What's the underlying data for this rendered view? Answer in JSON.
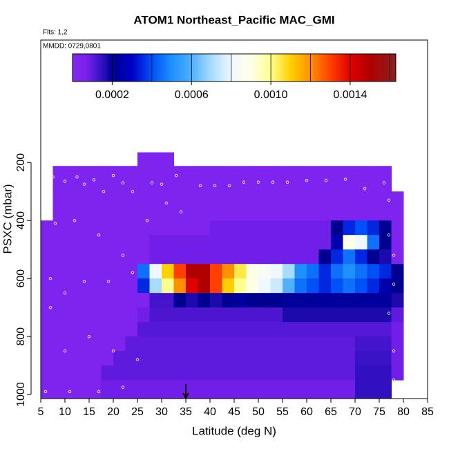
{
  "chart_data": {
    "type": "heatmap",
    "title": "ATOM1 Northeast_Pacific MAC_GMI",
    "subtitle": "Flts: 1,2",
    "annotation": "MMDD: 0729,0801",
    "xlabel": "Latitude (deg N)",
    "ylabel": "PSXC (mbar)",
    "xlim": [
      5,
      85
    ],
    "ylim": [
      1014,
      -222
    ],
    "xticks": [
      5,
      10,
      15,
      20,
      25,
      30,
      35,
      40,
      45,
      50,
      55,
      60,
      65,
      70,
      75,
      80,
      85
    ],
    "yticks": [
      200,
      400,
      600,
      800,
      1000
    ],
    "clim": [
      0,
      0.00163
    ],
    "cticks": [
      0.0002,
      0.0006,
      {
        "value": 0.001,
        "label": "0.0010"
      },
      0.0014
    ],
    "cbar_lines": [
      0.0002,
      0.0004,
      0.0006,
      0.0008,
      0.001,
      0.0012,
      0.0014,
      0.0016
    ],
    "colormap": [
      [
        0,
        "#8127ee"
      ],
      [
        7e-05,
        "#7a20ee"
      ],
      [
        0.00015,
        "#3010c0"
      ],
      [
        0.0002,
        "#000090"
      ],
      [
        0.0003,
        "#0000c8"
      ],
      [
        0.0004,
        "#0050f8"
      ],
      [
        0.0005,
        "#1e90ff"
      ],
      [
        0.0006,
        "#50b0ff"
      ],
      [
        0.0007,
        "#a8dcff"
      ],
      [
        0.0008,
        "#f0f8ff"
      ],
      [
        0.0009,
        "#ffffe8"
      ],
      [
        0.001,
        "#ffff90"
      ],
      [
        0.0011,
        "#ffd000"
      ],
      [
        0.0012,
        "#ff9000"
      ],
      [
        0.0013,
        "#ff4000"
      ],
      [
        0.0014,
        "#e00000"
      ],
      [
        0.0015,
        "#b00000"
      ],
      [
        0.00163,
        "#8b2020"
      ]
    ],
    "x_edges": [
      5,
      7.5,
      10,
      12.5,
      15,
      17.5,
      20,
      22.5,
      25,
      27.5,
      30,
      32.5,
      35,
      37.5,
      40,
      42.5,
      45,
      47.5,
      50,
      52.5,
      55,
      57.5,
      60,
      62.5,
      65,
      67.5,
      70,
      72.5,
      75,
      77.5,
      80
    ],
    "y_edges": [
      165,
      212,
      250,
      300,
      350,
      400,
      450,
      500,
      550,
      600,
      650,
      700,
      750,
      800,
      850,
      900,
      950,
      1000,
      1014
    ],
    "values": [
      [
        null,
        null,
        null,
        null,
        null,
        null,
        null,
        null,
        3e-05,
        3e-05,
        3e-05,
        null,
        null,
        null,
        null,
        null,
        null,
        null,
        null,
        null,
        null,
        null,
        null,
        null,
        null,
        null,
        null,
        null,
        null,
        null
      ],
      [
        null,
        3e-05,
        3e-05,
        3e-05,
        3e-05,
        3e-05,
        3e-05,
        3e-05,
        3e-05,
        3e-05,
        3e-05,
        3e-05,
        3e-05,
        3e-05,
        3e-05,
        3e-05,
        3e-05,
        3e-05,
        3e-05,
        3e-05,
        3e-05,
        3e-05,
        3e-05,
        3e-05,
        3e-05,
        3e-05,
        3e-05,
        3e-05,
        3e-05,
        null
      ],
      [
        null,
        3e-05,
        3e-05,
        3e-05,
        3e-05,
        3e-05,
        3e-05,
        3e-05,
        3e-05,
        3e-05,
        3e-05,
        3e-05,
        3e-05,
        3e-05,
        3e-05,
        3e-05,
        3e-05,
        3e-05,
        3e-05,
        3e-05,
        3e-05,
        3e-05,
        3e-05,
        3e-05,
        3e-05,
        3e-05,
        3e-05,
        3e-05,
        3e-05,
        null
      ],
      [
        null,
        3e-05,
        3e-05,
        3e-05,
        3e-05,
        3e-05,
        3e-05,
        3e-05,
        3e-05,
        3e-05,
        3e-05,
        3e-05,
        3e-05,
        3e-05,
        3e-05,
        3e-05,
        3e-05,
        3e-05,
        3e-05,
        3e-05,
        3e-05,
        3e-05,
        3e-05,
        3e-05,
        3e-05,
        3e-05,
        3e-05,
        3e-05,
        3e-05,
        3e-05
      ],
      [
        null,
        3e-05,
        3e-05,
        3e-05,
        3e-05,
        3e-05,
        3e-05,
        3e-05,
        3e-05,
        3e-05,
        3e-05,
        3e-05,
        3e-05,
        3e-05,
        3e-05,
        3e-05,
        3e-05,
        3e-05,
        3e-05,
        3e-05,
        3e-05,
        3e-05,
        3e-05,
        3e-05,
        3e-05,
        3e-05,
        3e-05,
        3e-05,
        3e-05,
        3e-05
      ],
      [
        3e-05,
        3e-05,
        3e-05,
        3e-05,
        3e-05,
        3e-05,
        3e-05,
        3e-05,
        3e-05,
        3e-05,
        3e-05,
        3e-05,
        3e-05,
        3e-05,
        8e-05,
        8e-05,
        8e-05,
        8e-05,
        8e-05,
        8e-05,
        8e-05,
        8e-05,
        8e-05,
        8e-05,
        0.0002,
        0.00035,
        0.0004,
        0.00035,
        0.0002,
        3e-05
      ],
      [
        3e-05,
        3e-05,
        3e-05,
        3e-05,
        3e-05,
        3e-05,
        3e-05,
        3e-05,
        3e-05,
        8e-05,
        8e-05,
        8e-05,
        8e-05,
        8e-05,
        8e-05,
        8e-05,
        8e-05,
        8e-05,
        8e-05,
        8e-05,
        8e-05,
        8e-05,
        8e-05,
        8e-05,
        0.00025,
        0.0009,
        0.0008,
        0.00045,
        0.0002,
        3e-05
      ],
      [
        3e-05,
        3e-05,
        3e-05,
        3e-05,
        3e-05,
        3e-05,
        3e-05,
        3e-05,
        3e-05,
        8e-05,
        8e-05,
        8e-05,
        8e-05,
        8e-05,
        8e-05,
        8e-05,
        8e-05,
        8e-05,
        8e-05,
        8e-05,
        8e-05,
        8e-05,
        8e-05,
        0.0002,
        0.00035,
        0.00045,
        0.00035,
        0.0002,
        0.00017,
        3e-05
      ],
      [
        3e-05,
        3e-05,
        3e-05,
        3e-05,
        3e-05,
        3e-05,
        3e-05,
        3e-05,
        0.00045,
        0.0008,
        0.0011,
        0.0013,
        0.0015,
        0.0015,
        0.0013,
        0.0012,
        0.00105,
        0.0009,
        0.00085,
        0.0008,
        0.0007,
        0.0005,
        0.00045,
        0.00035,
        0.00045,
        0.0005,
        0.00045,
        0.0004,
        0.00035,
        0.0002
      ],
      [
        3e-05,
        3e-05,
        3e-05,
        3e-05,
        3e-05,
        3e-05,
        3e-05,
        3e-05,
        0.00035,
        0.0007,
        0.001,
        0.0012,
        0.0014,
        0.0015,
        0.0013,
        0.0011,
        0.001,
        0.0009,
        0.0008,
        0.00075,
        0.0006,
        0.00045,
        0.0004,
        0.00035,
        0.0004,
        0.00045,
        0.0004,
        0.00035,
        0.00025,
        0.0002
      ],
      [
        3e-05,
        3e-05,
        3e-05,
        3e-05,
        3e-05,
        3e-05,
        3e-05,
        3e-05,
        3e-05,
        0.00013,
        0.00013,
        0.0002,
        0.00017,
        0.0002,
        0.00017,
        0.0002,
        0.00022,
        0.0002,
        0.0002,
        0.0002,
        0.00022,
        0.00022,
        0.00022,
        0.00022,
        0.00022,
        0.00022,
        0.00022,
        0.00022,
        0.00022,
        0.00017
      ],
      [
        3e-05,
        3e-05,
        3e-05,
        3e-05,
        3e-05,
        3e-05,
        3e-05,
        3e-05,
        8e-05,
        0.00012,
        0.00012,
        0.00012,
        0.00012,
        0.00012,
        0.00012,
        0.00012,
        0.00012,
        0.00012,
        0.00012,
        0.00012,
        0.00017,
        0.00017,
        0.00017,
        0.00017,
        0.00017,
        0.00017,
        0.00017,
        0.00017,
        0.00017,
        0.0001
      ],
      [
        3e-05,
        3e-05,
        3e-05,
        3e-05,
        3e-05,
        3e-05,
        3e-05,
        3e-05,
        0.00011,
        0.00011,
        0.00011,
        0.00011,
        0.00011,
        0.00011,
        0.00011,
        0.00011,
        0.00011,
        0.00011,
        0.00011,
        0.00011,
        0.00011,
        0.00011,
        0.00011,
        0.00011,
        0.00011,
        0.00011,
        0.00011,
        0.00011,
        0.00011,
        8e-05
      ],
      [
        3e-05,
        3e-05,
        3e-05,
        3e-05,
        3e-05,
        3e-05,
        3e-05,
        0.0001,
        0.0001,
        0.0001,
        0.0001,
        0.0001,
        0.0001,
        0.0001,
        0.0001,
        0.0001,
        0.0001,
        0.0001,
        0.0001,
        0.0001,
        0.0001,
        0.0001,
        0.0001,
        0.0001,
        0.0001,
        0.0001,
        0.00013,
        0.00013,
        0.00013,
        8e-05
      ],
      [
        3e-05,
        3e-05,
        3e-05,
        3e-05,
        3e-05,
        3e-05,
        0.0001,
        0.0001,
        0.0001,
        0.0001,
        0.0001,
        0.0001,
        0.0001,
        0.0001,
        0.0001,
        0.0001,
        0.0001,
        0.0001,
        0.0001,
        0.0001,
        0.0001,
        0.0001,
        0.0001,
        0.0001,
        0.0001,
        0.0001,
        0.00014,
        0.00014,
        0.00014,
        8e-05
      ],
      [
        3e-05,
        3e-05,
        3e-05,
        3e-05,
        3e-05,
        0.0001,
        0.0001,
        0.0001,
        0.0001,
        0.0001,
        0.0001,
        0.0001,
        0.0001,
        0.0001,
        0.0001,
        0.0001,
        0.0001,
        0.0001,
        0.0001,
        0.0001,
        0.0001,
        0.0001,
        0.0001,
        0.0001,
        0.0001,
        0.0001,
        0.00015,
        0.00015,
        0.00015,
        8e-05
      ],
      [
        3e-05,
        3e-05,
        3e-05,
        3e-05,
        3e-05,
        8e-05,
        8e-05,
        8e-05,
        8e-05,
        8e-05,
        8e-05,
        8e-05,
        8e-05,
        8e-05,
        8e-05,
        8e-05,
        8e-05,
        8e-05,
        8e-05,
        8e-05,
        8e-05,
        8e-05,
        8e-05,
        8e-05,
        8e-05,
        8e-05,
        0.00015,
        0.00015,
        0.00015,
        null
      ],
      [
        3e-05,
        3e-05,
        3e-05,
        3e-05,
        3e-05,
        8e-05,
        8e-05,
        8e-05,
        8e-05,
        8e-05,
        8e-05,
        8e-05,
        8e-05,
        8e-05,
        8e-05,
        8e-05,
        8e-05,
        8e-05,
        8e-05,
        8e-05,
        8e-05,
        8e-05,
        8e-05,
        8e-05,
        8e-05,
        8e-05,
        0.00015,
        0.00015,
        0.00015,
        null
      ]
    ],
    "track": {
      "x": [
        7.5,
        10,
        12.5,
        14,
        16,
        18,
        20,
        22,
        24,
        28,
        30,
        33,
        38,
        41,
        44,
        47,
        50,
        53,
        56,
        60,
        64,
        68,
        72,
        76,
        77,
        8,
        12,
        17,
        22,
        7,
        10,
        14,
        19,
        24,
        7,
        10,
        15,
        20,
        25,
        6,
        11,
        17,
        22,
        77,
        78,
        78,
        77,
        78,
        78,
        31,
        34,
        27
      ],
      "y": [
        250,
        265,
        250,
        275,
        260,
        300,
        245,
        270,
        300,
        270,
        275,
        245,
        280,
        280,
        280,
        268,
        268,
        268,
        268,
        262,
        262,
        258,
        290,
        270,
        330,
        410,
        400,
        450,
        520,
        600,
        650,
        610,
        610,
        580,
        700,
        850,
        800,
        850,
        880,
        990,
        990,
        990,
        975,
        450,
        520,
        620,
        720,
        850,
        950,
        340,
        370,
        400
      ]
    },
    "arrow_x": 35
  }
}
